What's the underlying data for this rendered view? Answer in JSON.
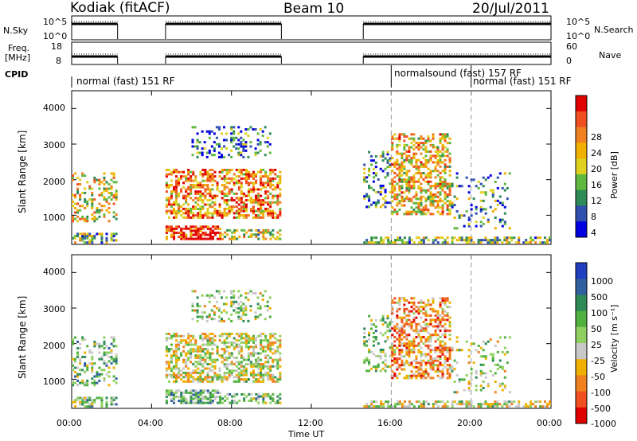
{
  "header": {
    "station": "Kodiak (fitACF)",
    "beam": "Beam 10",
    "date": "20/Jul/2011"
  },
  "top_panels": {
    "nsky_label": "N.Sky",
    "nsearch_label": "N.Search",
    "nsky_ticks": [
      "10^5",
      "10^0"
    ],
    "nsearch_ticks": [
      "10^5",
      "10^0"
    ],
    "freq_label_1": "Freq.",
    "freq_label_2": "[MHz]",
    "freq_ticks": [
      "18",
      "8"
    ],
    "nave_label": "Nave",
    "nave_ticks": [
      "60",
      "0"
    ],
    "cpid_label": "CPID"
  },
  "modes": [
    {
      "label": "normal (fast) 151 RF",
      "start_hour": 0
    },
    {
      "label": "normalsound (fast) 157 RF",
      "start_hour": 16
    },
    {
      "label": "normal (fast) 151 RF",
      "start_hour": 20
    }
  ],
  "axes": {
    "xlabel": "Time UT",
    "x_ticks": [
      "00:00",
      "04:00",
      "08:00",
      "12:00",
      "16:00",
      "20:00",
      "00:00"
    ],
    "y_label_1": "Slant Range [km]",
    "y_label_2": "Slant Range [km]",
    "y_ticks": [
      "4000",
      "3000",
      "2000",
      "1000"
    ]
  },
  "colorbars": {
    "power": {
      "label": "Power [dB]",
      "ticks": [
        "28",
        "24",
        "20",
        "16",
        "12",
        "8",
        "4"
      ],
      "colors": [
        "#e00000",
        "#f05020",
        "#f08020",
        "#f0b000",
        "#e0d020",
        "#60b840",
        "#2e8b57",
        "#3050b0",
        "#0000e0"
      ]
    },
    "velocity": {
      "label": "Velocity [m s⁻¹]",
      "ticks": [
        "1000",
        "500",
        "100",
        "50",
        "25",
        "-25",
        "-50",
        "-100",
        "-500",
        "-1000"
      ],
      "colors": [
        "#2040c0",
        "#3060a0",
        "#2e8b57",
        "#50b040",
        "#90d060",
        "#c8c8c8",
        "#f0b000",
        "#f08020",
        "#f05020",
        "#e00000"
      ]
    }
  },
  "chart_data": {
    "type": "heatmap",
    "title": "Kodiak (fitACF)   Beam 10   20/Jul/2011",
    "xlabel": "Time UT",
    "ylabel": "Slant Range [km]",
    "xlim": [
      "00:00",
      "24:00"
    ],
    "ylim": [
      180,
      4500
    ],
    "series": [
      {
        "name": "Power [dB]",
        "range": [
          0,
          30
        ]
      },
      {
        "name": "Velocity [m s-1]",
        "range": [
          -1000,
          1000
        ]
      }
    ],
    "data_gaps_hours": [
      [
        2.3,
        4.7
      ],
      [
        10.5,
        14.6
      ]
    ],
    "mode_change_hours": [
      16.0,
      20.0
    ]
  },
  "colors": {
    "grid_dash": "#999999",
    "axis": "#000000"
  }
}
